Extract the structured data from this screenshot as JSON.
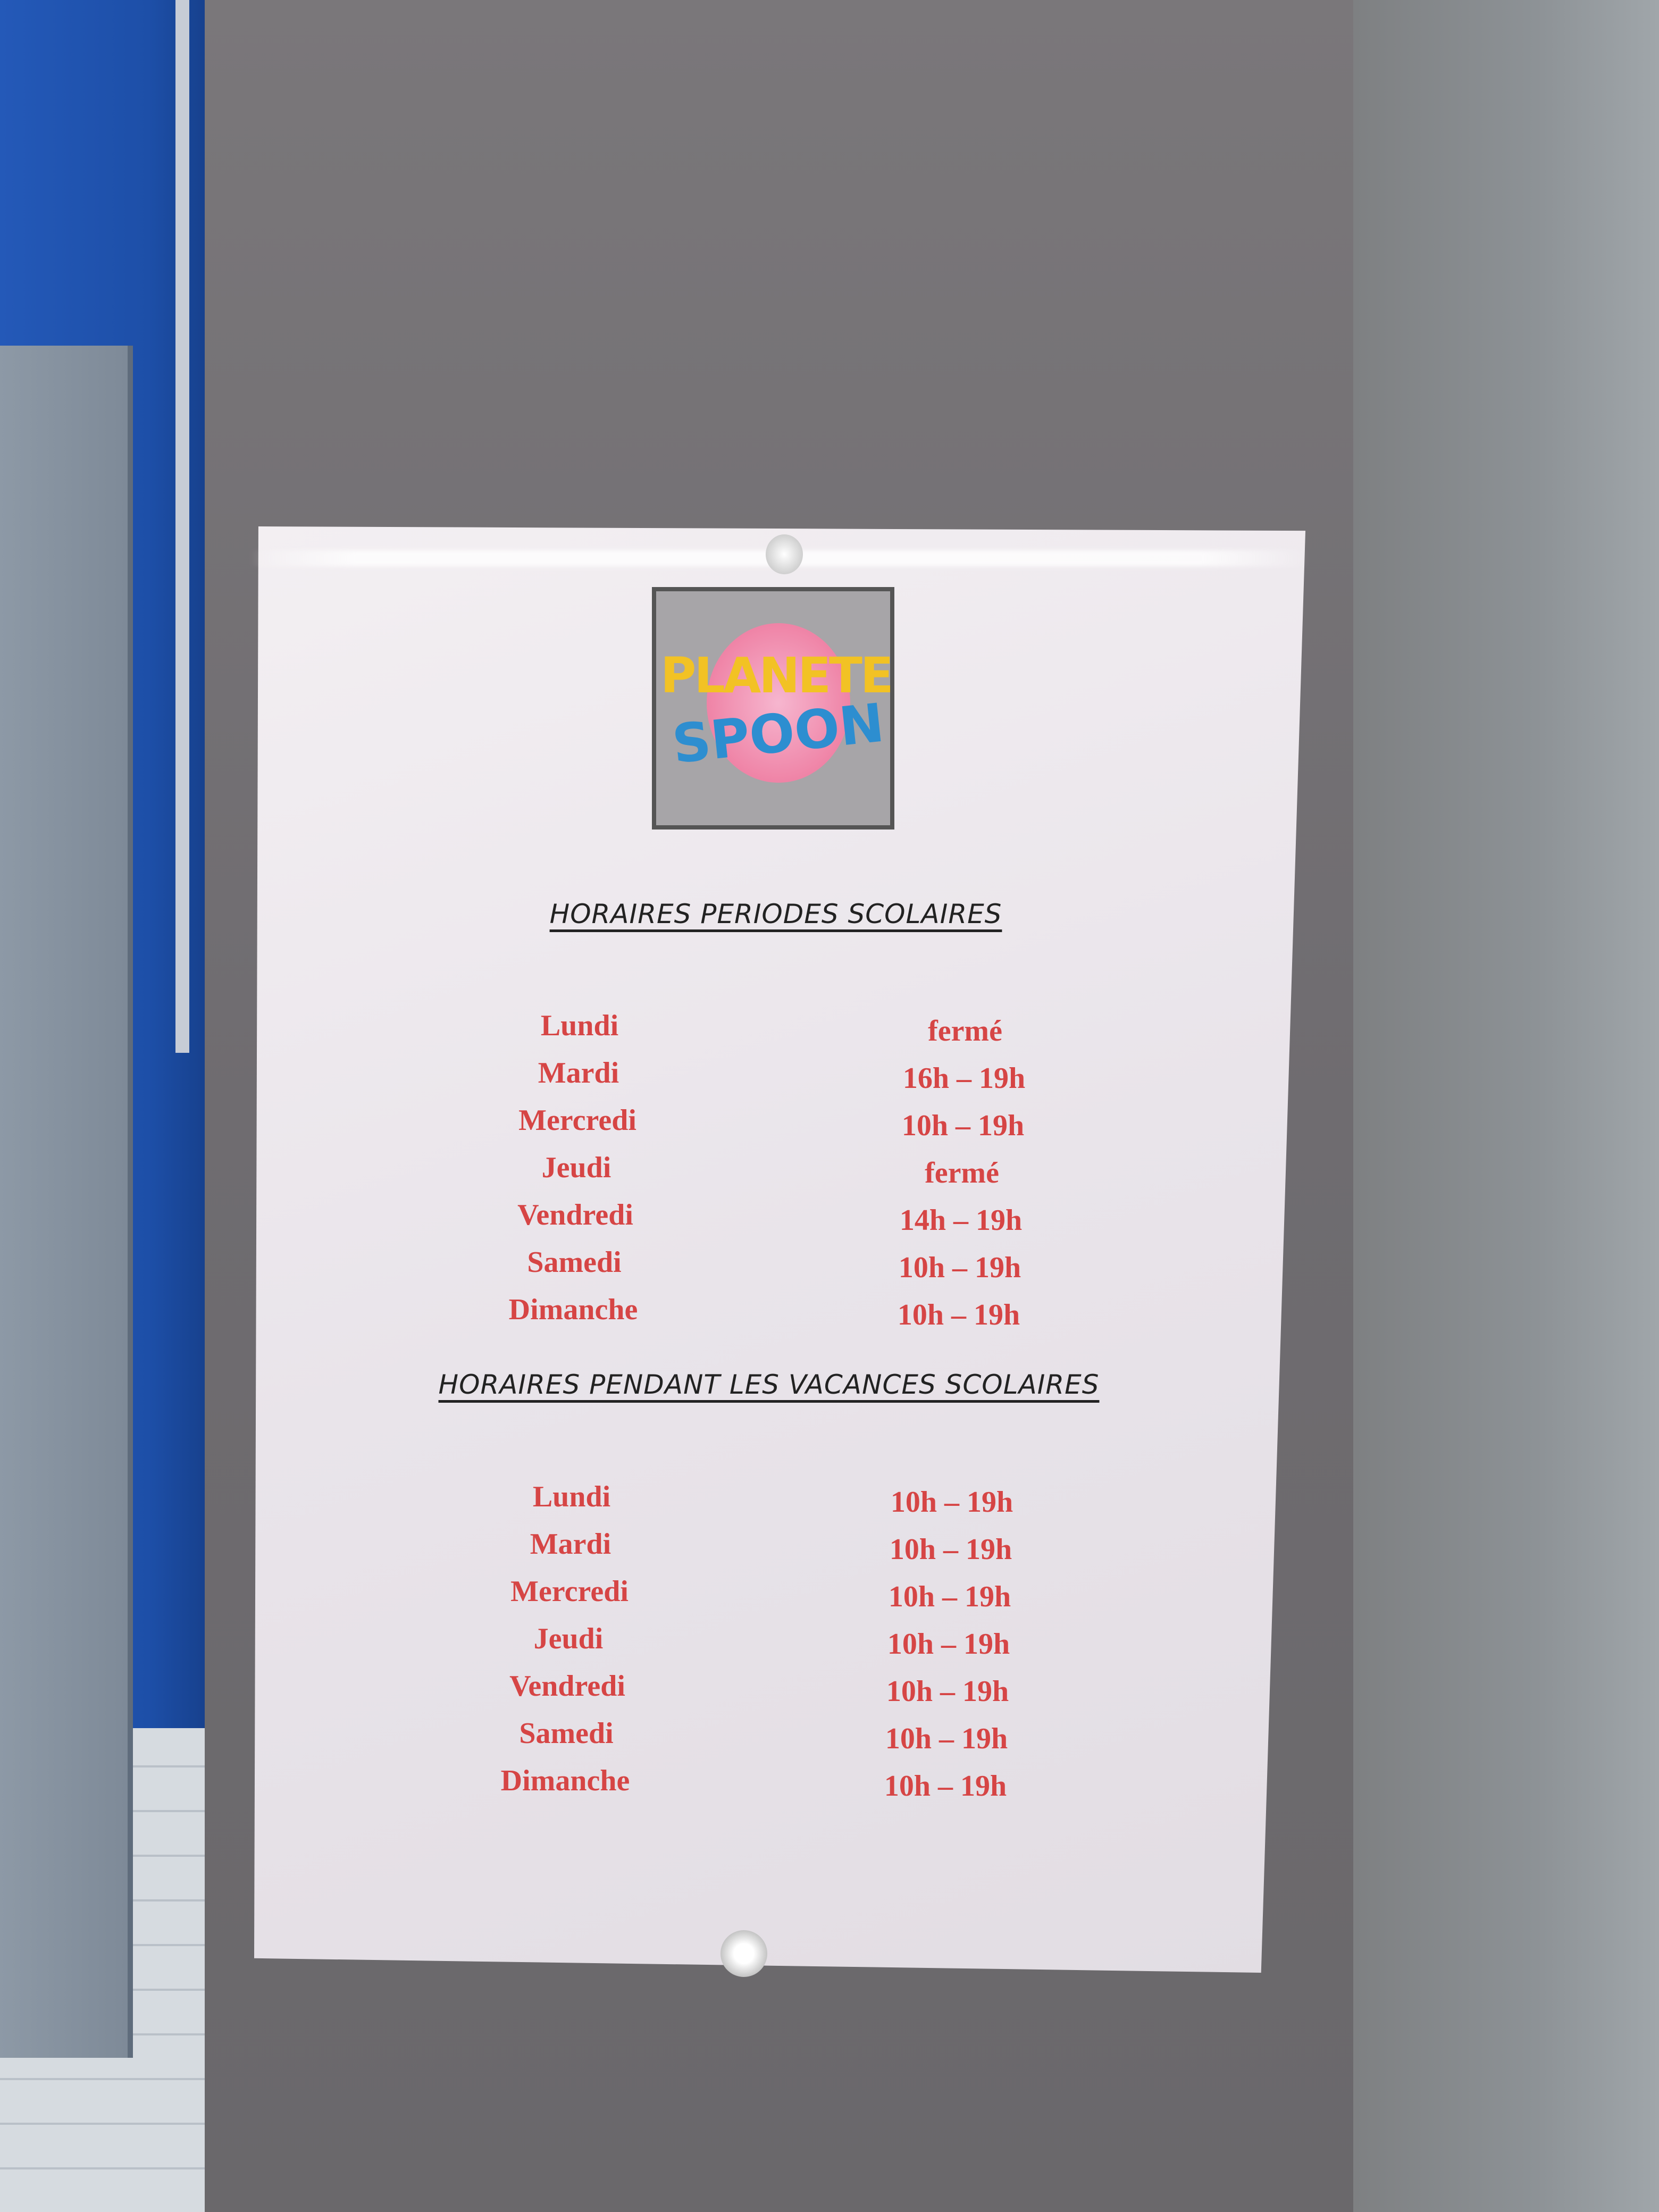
{
  "logo": {
    "line1": "PLANETE",
    "line2": "SPOON"
  },
  "school_periods": {
    "title": "HORAIRES PERIODES SCOLAIRES",
    "rows": [
      {
        "day": "Lundi",
        "hours": "fermé"
      },
      {
        "day": "Mardi",
        "hours": "16h – 19h"
      },
      {
        "day": "Mercredi",
        "hours": "10h – 19h"
      },
      {
        "day": "Jeudi",
        "hours": "fermé"
      },
      {
        "day": "Vendredi",
        "hours": "14h – 19h"
      },
      {
        "day": "Samedi",
        "hours": "10h – 19h"
      },
      {
        "day": "Dimanche",
        "hours": "10h – 19h"
      }
    ]
  },
  "school_holidays": {
    "title": "HORAIRES PENDANT LES VACANCES SCOLAIRES",
    "rows": [
      {
        "day": "Lundi",
        "hours": "10h – 19h"
      },
      {
        "day": "Mardi",
        "hours": "10h – 19h"
      },
      {
        "day": "Mercredi",
        "hours": "10h – 19h"
      },
      {
        "day": "Jeudi",
        "hours": "10h – 19h"
      },
      {
        "day": "Vendredi",
        "hours": "10h – 19h"
      },
      {
        "day": "Samedi",
        "hours": "10h – 19h"
      },
      {
        "day": "Dimanche",
        "hours": "10h – 19h"
      }
    ]
  },
  "colors": {
    "text_red": "#d64545",
    "wall_blue": "#2459b8",
    "column_grey": "#7a777a"
  }
}
